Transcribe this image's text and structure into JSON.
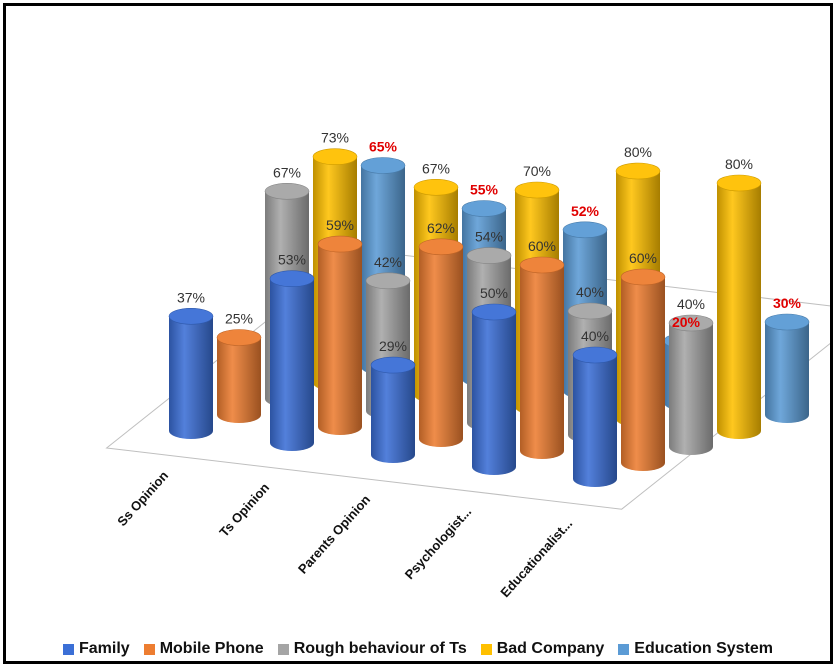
{
  "chart_data": {
    "type": "bar",
    "style": "3d-cylinder",
    "categories": [
      "Ss Opinion",
      "Ts Opinion",
      "Parents Opinion",
      "Psychologist...",
      "Educationalist..."
    ],
    "series": [
      {
        "name": "Family",
        "color": "#3b6fd6",
        "values": [
          37,
          53,
          29,
          50,
          40
        ]
      },
      {
        "name": "Mobile Phone",
        "color": "#ed7d31",
        "values": [
          25,
          59,
          62,
          60,
          60
        ]
      },
      {
        "name": "Rough behaviour of Ts",
        "color": "#a5a5a5",
        "values": [
          67,
          42,
          54,
          40,
          40
        ]
      },
      {
        "name": "Bad Company",
        "color": "#ffc000",
        "values": [
          73,
          67,
          70,
          80,
          80
        ]
      },
      {
        "name": "Education System",
        "color": "#5b9bd5",
        "values": [
          65,
          55,
          52,
          20,
          30
        ]
      }
    ],
    "value_labels": [
      [
        "37%",
        "53%",
        "29%",
        "50%",
        "40%"
      ],
      [
        "25%",
        "59%",
        "62%",
        "60%",
        "60%"
      ],
      [
        "67%",
        "42%",
        "54%",
        "40%",
        "40%"
      ],
      [
        "73%",
        "67%",
        "70%",
        "80%",
        "80%"
      ],
      [
        "65%",
        "55%",
        "52%",
        "20%",
        "30%"
      ]
    ],
    "highlighted_series": "Education System",
    "highlight_color": "#e00000",
    "legend_position": "bottom",
    "title": "",
    "xlabel": "",
    "ylabel": ""
  }
}
